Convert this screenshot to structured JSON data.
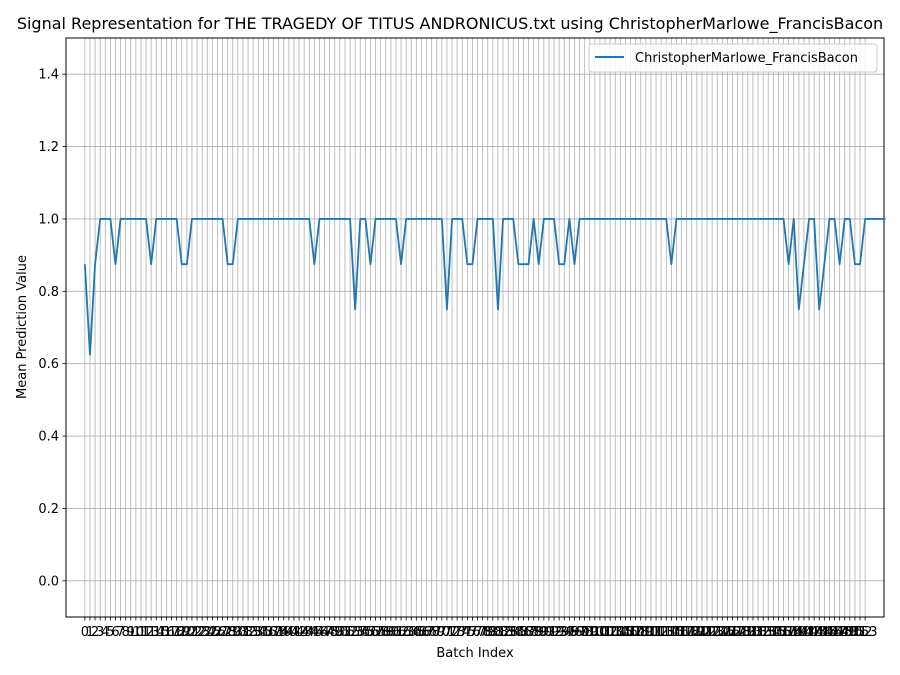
{
  "chart_data": {
    "type": "line",
    "title": "Signal Representation for THE TRAGEDY OF TITUS ANDRONICUS.txt using ChristopherMarlowe_FrancisBacon",
    "xlabel": "Batch Index",
    "ylabel": "Mean Prediction Value",
    "xlim": [
      -3.7,
      156.7
    ],
    "ylim": [
      -0.1,
      1.5
    ],
    "yticks": [
      0.0,
      0.2,
      0.4,
      0.6,
      0.8,
      1.0,
      1.2,
      1.4
    ],
    "ytick_labels": [
      "0.0",
      "0.2",
      "0.4",
      "0.6",
      "0.8",
      "1.0",
      "1.2",
      "1.4"
    ],
    "xticks": [
      0,
      1,
      2,
      3,
      4,
      5,
      6,
      7,
      8,
      9,
      10,
      11,
      12,
      13,
      14,
      15,
      16,
      17,
      18,
      19,
      20,
      21,
      22,
      23,
      24,
      25,
      26,
      27,
      28,
      29,
      30,
      31,
      32,
      33,
      34,
      35,
      36,
      37,
      38,
      39,
      40,
      41,
      42,
      43,
      44,
      45,
      46,
      47,
      48,
      49,
      50,
      51,
      52,
      53,
      54,
      55,
      56,
      57,
      58,
      59,
      60,
      61,
      62,
      63,
      64,
      65,
      66,
      67,
      68,
      69,
      70,
      71,
      72,
      73,
      74,
      75,
      76,
      77,
      78,
      79,
      80,
      81,
      82,
      83,
      84,
      85,
      86,
      87,
      88,
      89,
      90,
      91,
      92,
      93,
      94,
      95,
      96,
      97,
      98,
      99,
      100,
      101,
      102,
      103,
      104,
      105,
      106,
      107,
      108,
      109,
      110,
      111,
      112,
      113,
      114,
      115,
      116,
      117,
      118,
      119,
      120,
      121,
      122,
      123,
      124,
      125,
      126,
      127,
      128,
      129,
      130,
      131,
      132,
      133,
      134,
      135,
      136,
      137,
      138,
      139,
      140,
      141,
      142,
      143,
      144,
      145,
      146,
      147,
      148,
      149,
      150,
      151,
      152,
      153
    ],
    "grid": true,
    "legend_position": "upper right",
    "line_color": "#1f77b4",
    "series": [
      {
        "name": "ChristopherMarlowe_FrancisBacon",
        "values": [
          0.875,
          0.625,
          0.875,
          1.0,
          1.0,
          1.0,
          0.875,
          1.0,
          1.0,
          1.0,
          1.0,
          1.0,
          1.0,
          0.875,
          1.0,
          1.0,
          1.0,
          1.0,
          1.0,
          0.875,
          0.875,
          1.0,
          1.0,
          1.0,
          1.0,
          1.0,
          1.0,
          1.0,
          0.875,
          0.875,
          1.0,
          1.0,
          1.0,
          1.0,
          1.0,
          1.0,
          1.0,
          1.0,
          1.0,
          1.0,
          1.0,
          1.0,
          1.0,
          1.0,
          1.0,
          0.875,
          1.0,
          1.0,
          1.0,
          1.0,
          1.0,
          1.0,
          1.0,
          0.75,
          1.0,
          1.0,
          0.875,
          1.0,
          1.0,
          1.0,
          1.0,
          1.0,
          0.875,
          1.0,
          1.0,
          1.0,
          1.0,
          1.0,
          1.0,
          1.0,
          1.0,
          0.75,
          1.0,
          1.0,
          1.0,
          0.875,
          0.875,
          1.0,
          1.0,
          1.0,
          1.0,
          0.75,
          1.0,
          1.0,
          1.0,
          0.875,
          0.875,
          0.875,
          1.0,
          0.875,
          1.0,
          1.0,
          1.0,
          0.875,
          0.875,
          1.0,
          0.875,
          1.0,
          1.0,
          1.0,
          1.0,
          1.0,
          1.0,
          1.0,
          1.0,
          1.0,
          1.0,
          1.0,
          1.0,
          1.0,
          1.0,
          1.0,
          1.0,
          1.0,
          1.0,
          0.875,
          1.0,
          1.0,
          1.0,
          1.0,
          1.0,
          1.0,
          1.0,
          1.0,
          1.0,
          1.0,
          1.0,
          1.0,
          1.0,
          1.0,
          1.0,
          1.0,
          1.0,
          1.0,
          1.0,
          1.0,
          1.0,
          1.0,
          0.875,
          1.0,
          0.75,
          0.875,
          1.0,
          1.0,
          0.75,
          0.875,
          1.0,
          1.0,
          0.875,
          1.0,
          1.0,
          0.875,
          0.875,
          1.0,
          1.0,
          1.0,
          1.0,
          1.0
        ]
      }
    ]
  }
}
